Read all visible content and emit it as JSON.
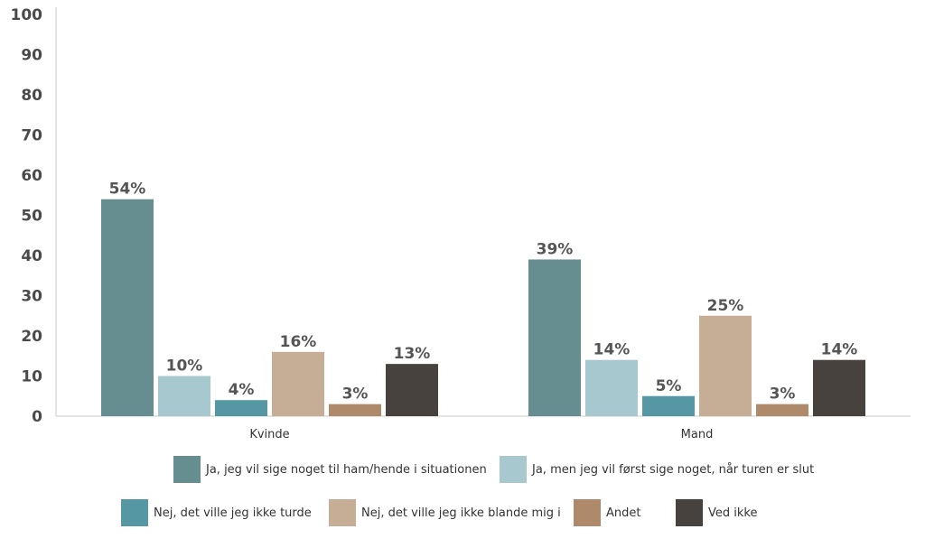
{
  "chart_data": {
    "type": "bar",
    "categories": [
      "Kvinde",
      "Mand"
    ],
    "series": [
      {
        "name": "Ja, jeg vil sige noget til ham/hende i situationen",
        "values": [
          54,
          39
        ],
        "labels": [
          "54%",
          "39%"
        ],
        "color": "#668e91"
      },
      {
        "name": "Ja, men jeg vil først sige noget, når turen er slut",
        "values": [
          10,
          14
        ],
        "labels": [
          "10%",
          "14%"
        ],
        "color": "#a8c8cf"
      },
      {
        "name": "Nej, det ville jeg ikke turde",
        "values": [
          4,
          5
        ],
        "labels": [
          "4%",
          "5%"
        ],
        "color": "#5598a3"
      },
      {
        "name": "Nej, det ville jeg ikke blande mig i",
        "values": [
          16,
          25
        ],
        "labels": [
          "16%",
          "25%"
        ],
        "color": "#c6ae96"
      },
      {
        "name": "Andet",
        "values": [
          3,
          3
        ],
        "labels": [
          "3%",
          "3%"
        ],
        "color": "#ae8a6a"
      },
      {
        "name": "Ved ikke",
        "values": [
          13,
          14
        ],
        "labels": [
          "13%",
          "14%"
        ],
        "color": "#48423f"
      }
    ],
    "yticks": [
      "0",
      "10",
      "20",
      "30",
      "40",
      "50",
      "60",
      "70",
      "80",
      "90",
      "100"
    ],
    "ylim": [
      0,
      100
    ],
    "grid": false,
    "legend_position": "bottom"
  }
}
